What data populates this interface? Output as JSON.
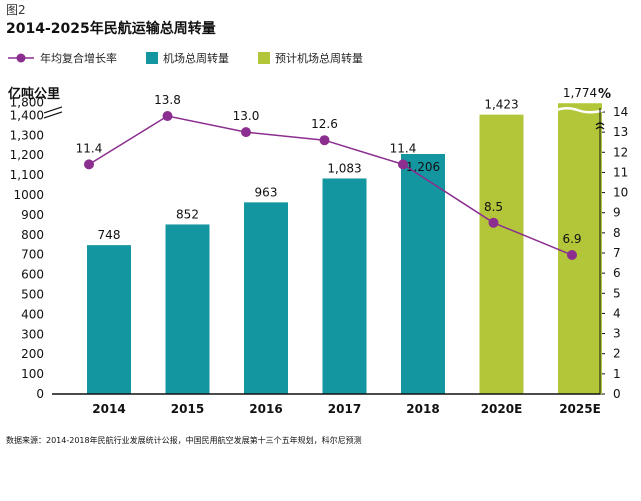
{
  "figure_label": "图2",
  "source_note": "数据来源：2014-2018年民航行业发展统计公报，中国民用航空发展第十三个五年规划，科尔尼预测",
  "colors": {
    "bar_actual": "#1496a0",
    "bar_forecast": "#b3c63a",
    "line": "#8b2e8f",
    "axis": "#111111"
  },
  "chart_data": {
    "type": "bar",
    "title": "2014-2025年民航运输总周转量",
    "categories": [
      "2014",
      "2015",
      "2016",
      "2017",
      "2018",
      "2020E",
      "2025E"
    ],
    "left_axis": {
      "label": "亿吨公里",
      "ticks": [
        "0",
        "100",
        "200",
        "300",
        "400",
        "500",
        "600",
        "700",
        "800",
        "900",
        "1000",
        "1,100",
        "1,200",
        "1,300",
        "1,400",
        "1,800"
      ],
      "ylim": [
        0,
        1800
      ],
      "axis_break": true
    },
    "right_axis": {
      "label": "%",
      "ticks": [
        "0",
        "1",
        "2",
        "3",
        "4",
        "5",
        "6",
        "7",
        "8",
        "9",
        "10",
        "11",
        "12",
        "13",
        "14"
      ],
      "ylim": [
        0,
        14
      ],
      "axis_break": true
    },
    "series": [
      {
        "name": "年均复合增长率",
        "kind": "line",
        "axis": "right",
        "values": [
          11.4,
          13.8,
          13.0,
          12.6,
          11.4,
          8.5,
          6.9
        ],
        "labels": [
          "11.4",
          "13.8",
          "13.0",
          "12.6",
          "11.4",
          "8.5",
          "6.9"
        ]
      },
      {
        "name": "机场总周转量",
        "kind": "bar",
        "axis": "left",
        "values": [
          748,
          852,
          963,
          1083,
          1206,
          null,
          null
        ],
        "labels": [
          "748",
          "852",
          "963",
          "1,083",
          "1,206",
          "",
          ""
        ]
      },
      {
        "name": "预计机场总周转量",
        "kind": "bar",
        "axis": "left",
        "values": [
          null,
          null,
          null,
          null,
          null,
          1423,
          1774
        ],
        "labels": [
          "",
          "",
          "",
          "",
          "",
          "1,423",
          "1,774"
        ]
      }
    ],
    "legend_position": "top",
    "grid": false
  }
}
